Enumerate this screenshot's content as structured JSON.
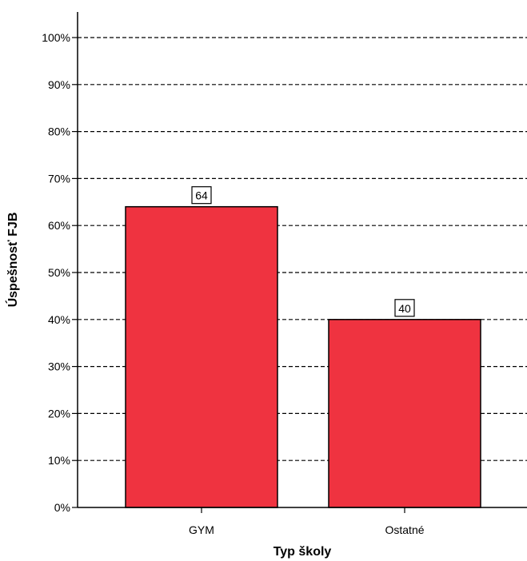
{
  "chart_data": {
    "type": "bar",
    "categories": [
      "GYM",
      "Ostatné"
    ],
    "values": [
      64,
      40
    ],
    "data_labels": [
      "64",
      "40"
    ],
    "xlabel": "Typ školy",
    "ylabel": "Úspešnosť FJB",
    "ylim": [
      0,
      100
    ],
    "y_ticks": [
      0,
      10,
      20,
      30,
      40,
      50,
      60,
      70,
      80,
      90,
      100
    ],
    "y_tick_labels": [
      "0%",
      "10%",
      "20%",
      "30%",
      "40%",
      "50%",
      "60%",
      "70%",
      "80%",
      "90%",
      "100%"
    ],
    "grid": true,
    "grid_style": "dashed",
    "bar_color": "#ef3340",
    "bar_edge_color": "#000000"
  }
}
